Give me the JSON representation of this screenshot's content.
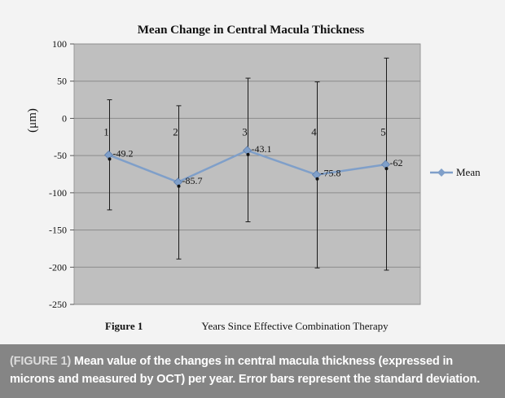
{
  "colors": {
    "panel": "#f3f3f3",
    "plot_area": "#bfbfbf",
    "series": "#7f9fc9",
    "error_bar": "#1a1a1a",
    "caption_bg": "#858585"
  },
  "chart_data": {
    "type": "line",
    "title": "Mean Change in Central Macula Thickness",
    "ylabel": "(μm)",
    "xlabel": "Years Since Effective Combination Therapy",
    "figure_label": "Figure 1",
    "ylim": [
      -250,
      100
    ],
    "ytick_step": 50,
    "yticks": [
      "100",
      "50",
      "0",
      "-50",
      "-100",
      "-150",
      "-200",
      "-250"
    ],
    "grid": true,
    "legend_position": "right",
    "categories": [
      "1",
      "2",
      "3",
      "4",
      "5"
    ],
    "series": [
      {
        "name": "Mean",
        "values": [
          -49.2,
          -85.7,
          -43.1,
          -75.8,
          -62
        ],
        "labels": [
          "-49.2",
          "-85.7",
          "-43.1",
          "-75.8",
          "-62"
        ],
        "error_high": [
          25,
          17,
          54,
          49,
          81
        ],
        "error_low": [
          -123,
          -189,
          -139,
          -201,
          -204
        ]
      }
    ]
  },
  "caption": {
    "tag": "(FIGURE 1)",
    "text": "Mean value of the changes in central macula thickness (expressed in microns and measured by OCT) per year. Error bars represent the standard deviation."
  }
}
